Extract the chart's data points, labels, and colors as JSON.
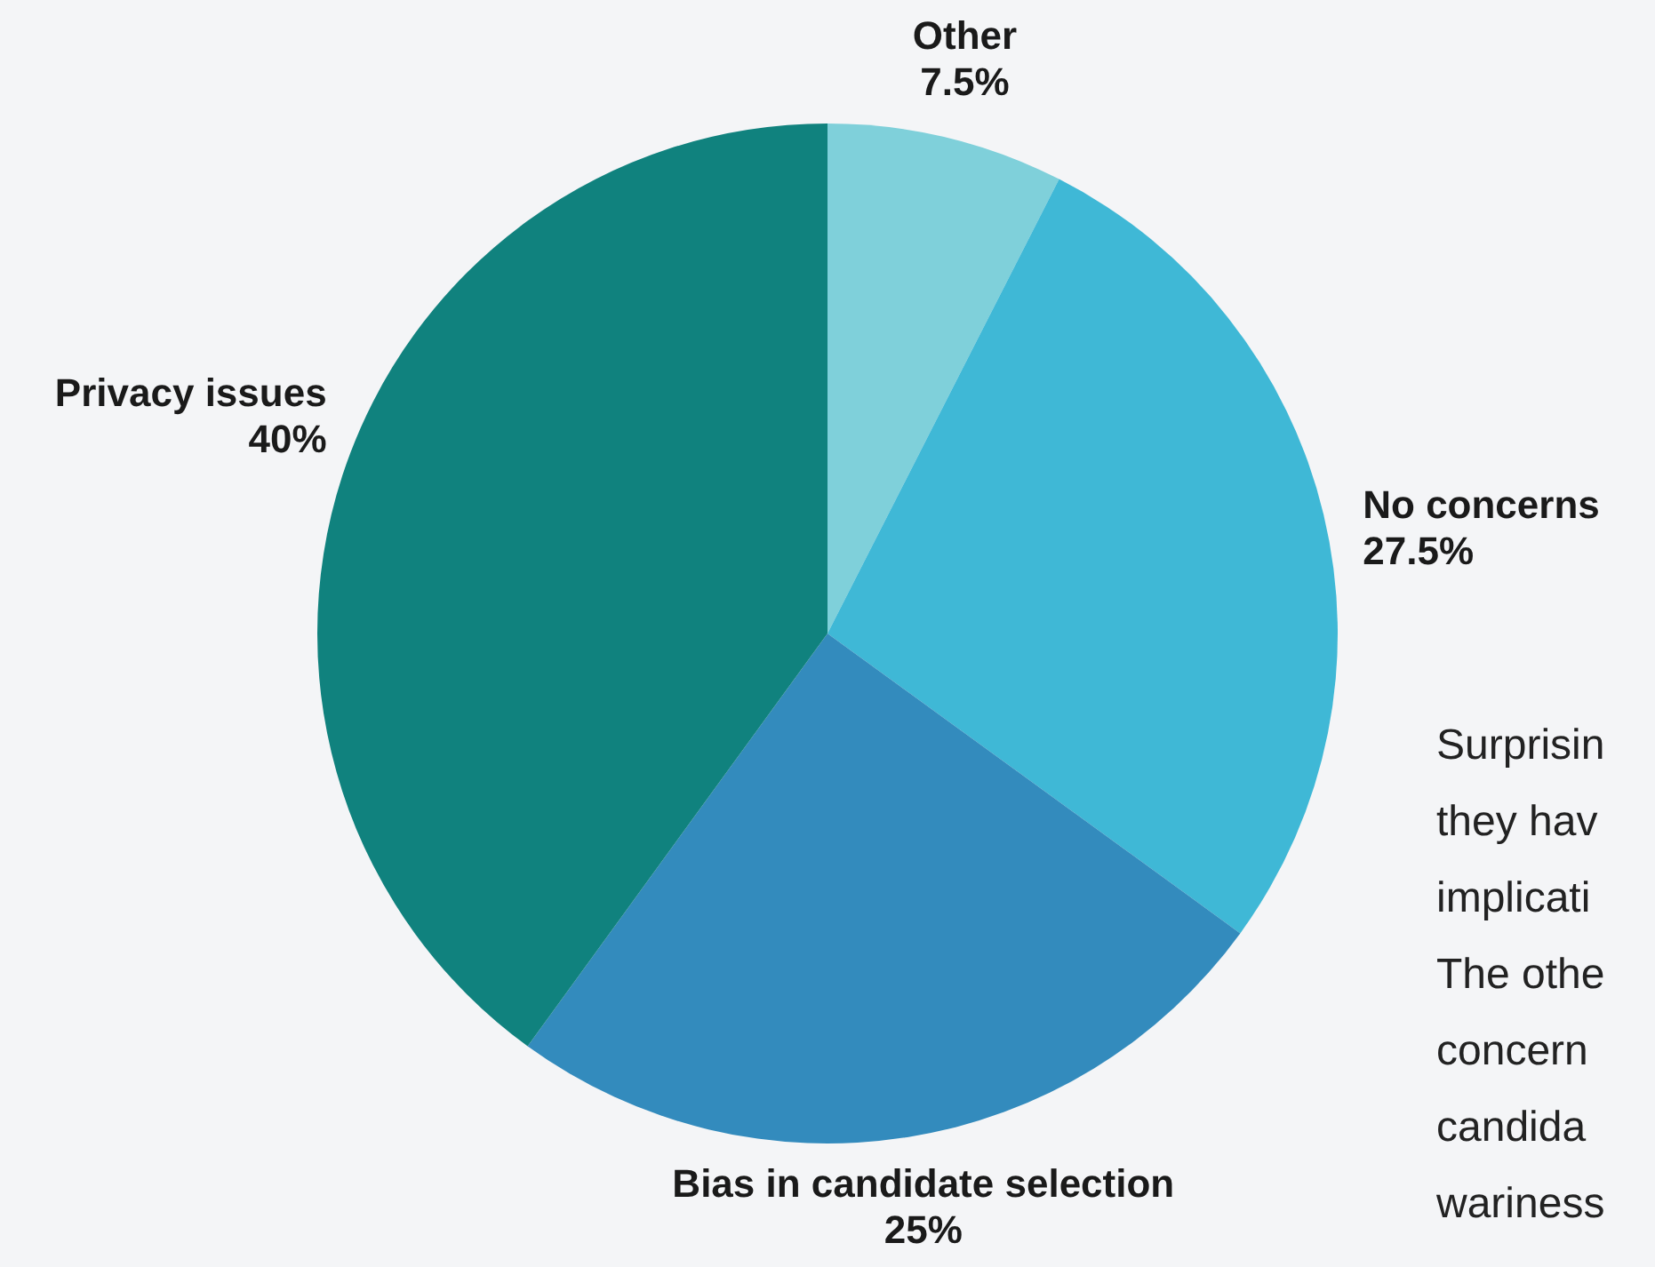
{
  "chart_data": {
    "type": "pie",
    "categories": [
      "Other",
      "No concerns",
      "Bias in candidate selection",
      "Privacy issues"
    ],
    "values": [
      7.5,
      27.5,
      25,
      40
    ],
    "value_labels": [
      "7.5%",
      "27.5%",
      "25%",
      "40%"
    ],
    "colors": [
      "#7fd0da",
      "#3fb8d6",
      "#338bbd",
      "#10827e"
    ],
    "annotations": [
      "Surprisin",
      "they hav",
      "implicati",
      "The othe",
      "concern",
      "candida",
      "wariness"
    ]
  }
}
